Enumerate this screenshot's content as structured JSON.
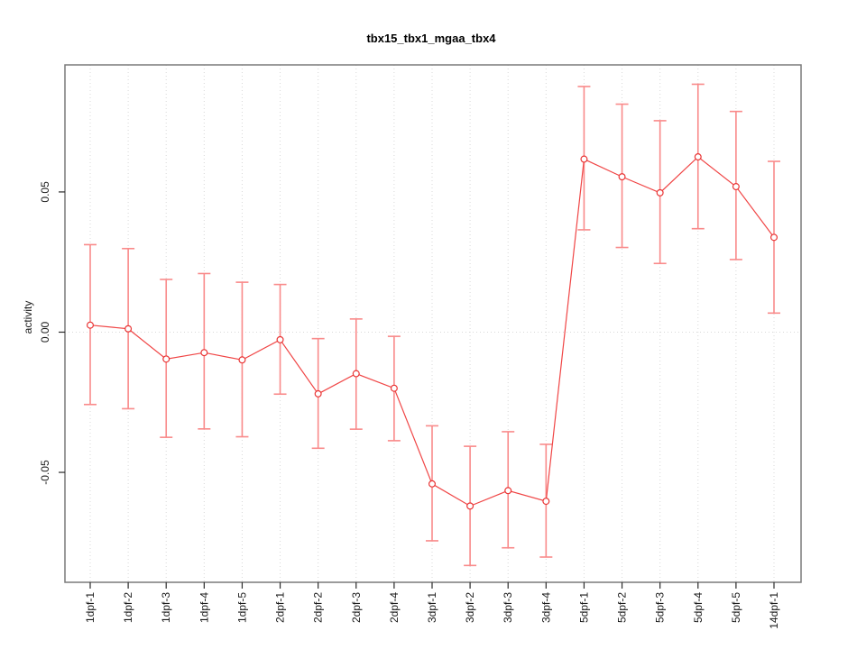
{
  "chart_data": {
    "type": "line",
    "title": "tbx15_tbx1_mgaa_tbx4",
    "ylabel": "activity",
    "xlabel": "",
    "legend": "none",
    "categories": [
      "1dpf-1",
      "1dpf-2",
      "1dpf-3",
      "1dpf-4",
      "1dpf-5",
      "2dpf-1",
      "2dpf-2",
      "2dpf-3",
      "2dpf-4",
      "3dpf-1",
      "3dpf-2",
      "3dpf-3",
      "3dpf-4",
      "5dpf-1",
      "5dpf-2",
      "5dpf-3",
      "5dpf-4",
      "5dpf-5",
      "14dpf-1"
    ],
    "series": [
      {
        "name": "activity",
        "values": [
          0.0025,
          0.0012,
          -0.0096,
          -0.0073,
          -0.0099,
          -0.0027,
          -0.022,
          -0.0148,
          -0.02,
          -0.0541,
          -0.062,
          -0.0565,
          -0.0603,
          0.0617,
          0.0554,
          0.0497,
          0.0625,
          0.0519,
          0.0338
        ],
        "error_upper": [
          0.0312,
          0.0298,
          0.0188,
          0.0209,
          0.0178,
          0.017,
          -0.0023,
          0.0047,
          -0.0015,
          -0.0334,
          -0.0407,
          -0.0355,
          -0.04,
          0.0876,
          0.0813,
          0.0754,
          0.0884,
          0.0787,
          0.0609
        ],
        "error_lower": [
          -0.0258,
          -0.0273,
          -0.0375,
          -0.0345,
          -0.0373,
          -0.0221,
          -0.0414,
          -0.0346,
          -0.0387,
          -0.0744,
          -0.0832,
          -0.0769,
          -0.0802,
          0.0365,
          0.0302,
          0.0245,
          0.0369,
          0.0259,
          0.0068
        ]
      }
    ],
    "yticks": [
      -0.05,
      0,
      0.05
    ],
    "ytick_labels": [
      "-0.05",
      "0.00",
      "0.05"
    ],
    "ylim": [
      -0.0892,
      0.0953
    ],
    "grid": {
      "vertical": "per-category",
      "horizontal_at": 0,
      "style": "dotted"
    },
    "colors": {
      "point": "#e93535",
      "line": "#f04545",
      "error_bar": "#f98a8a",
      "grid": "#d8d8d8",
      "box": "#7a7a7a",
      "tick": "#2a2a2a",
      "text": "#1a1a1a",
      "background": "#ffffff"
    }
  }
}
